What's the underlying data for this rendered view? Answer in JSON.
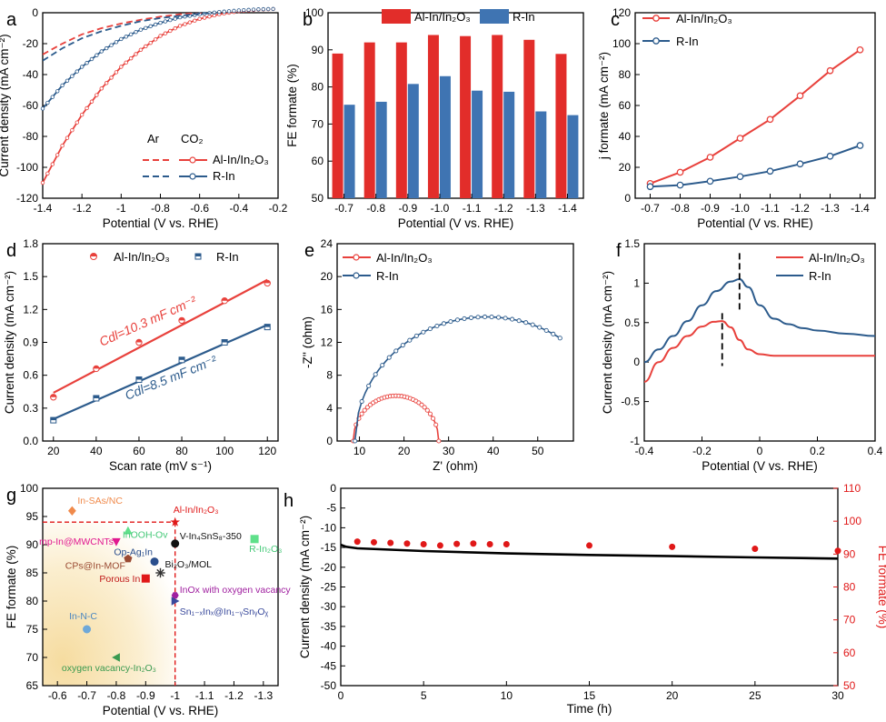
{
  "colors": {
    "red": "#e8413c",
    "blue": "#2c5b8c",
    "bar_red": "#e22d2a",
    "bar_blue": "#3f74b2",
    "green": "#2eb24b",
    "black": "#111111"
  },
  "chart_data": [
    {
      "id": "a",
      "letter": "a",
      "type": "line",
      "xlabel": "Potential (V vs. RHE)",
      "ylabel": "Current density (mA cm⁻²)",
      "xlim": [
        -1.4,
        -0.2
      ],
      "ylim": [
        -120,
        0
      ],
      "xticks": [
        -1.4,
        -1.2,
        -1.0,
        -0.8,
        -0.6,
        -0.4,
        -0.2
      ],
      "yticks": [
        -120,
        -100,
        -80,
        -60,
        -40,
        -20,
        0
      ],
      "legend_headers": [
        "Ar",
        "CO₂"
      ],
      "series": [
        {
          "name": "Al-In/In₂O₃",
          "condition": "CO₂",
          "color": "#e8413c",
          "style": "solid-marker",
          "x": [
            -1.4,
            -1.3,
            -1.2,
            -1.1,
            -1.0,
            -0.9,
            -0.8,
            -0.7,
            -0.6,
            -0.5,
            -0.4,
            -0.3,
            -0.2
          ],
          "y": [
            -110,
            -86,
            -66,
            -49,
            -35,
            -24,
            -15,
            -8.5,
            -4,
            -1,
            1,
            2,
            2.5
          ]
        },
        {
          "name": "R-In",
          "condition": "CO₂",
          "color": "#2c5b8c",
          "style": "solid-marker",
          "x": [
            -1.4,
            -1.3,
            -1.2,
            -1.1,
            -1.0,
            -0.9,
            -0.8,
            -0.7,
            -0.6,
            -0.5,
            -0.4,
            -0.3,
            -0.2
          ],
          "y": [
            -62,
            -47,
            -35,
            -25,
            -17,
            -11,
            -6.5,
            -3,
            -1,
            0.5,
            1.5,
            2.2,
            2.5
          ]
        },
        {
          "name": "Al-In/In₂O₃",
          "condition": "Ar",
          "color": "#e8413c",
          "style": "dashed",
          "x": [
            -1.4,
            -1.3,
            -1.2,
            -1.1,
            -1.0,
            -0.9,
            -0.8,
            -0.7,
            -0.6,
            -0.5,
            -0.4,
            -0.3,
            -0.2
          ],
          "y": [
            -27,
            -20,
            -14,
            -10,
            -7,
            -4.5,
            -2.5,
            -1,
            0,
            1,
            1.8,
            2.5,
            3
          ]
        },
        {
          "name": "R-In",
          "condition": "Ar",
          "color": "#2c5b8c",
          "style": "dashed",
          "x": [
            -1.4,
            -1.3,
            -1.2,
            -1.1,
            -1.0,
            -0.9,
            -0.8,
            -0.7,
            -0.6,
            -0.5,
            -0.4,
            -0.3,
            -0.2
          ],
          "y": [
            -31,
            -23,
            -16.5,
            -12,
            -8.5,
            -5.5,
            -3.5,
            -2,
            -0.5,
            0.5,
            1.5,
            2.3,
            3
          ]
        }
      ]
    },
    {
      "id": "b",
      "letter": "b",
      "type": "bar",
      "xlabel": "Potential  (V vs. RHE)",
      "ylabel": "FE formate (%)",
      "ylim": [
        50,
        100
      ],
      "yticks": [
        50,
        60,
        70,
        80,
        90,
        100
      ],
      "categories": [
        "-0.7",
        "-0.8",
        "-0.9",
        "-1.0",
        "-1.1",
        "-1.2",
        "-1.3",
        "-1.4"
      ],
      "series": [
        {
          "name": "Al-In/In₂O₃",
          "color": "#e22d2a",
          "values": [
            89,
            92,
            92,
            94,
            93.7,
            94,
            92.7,
            88.9
          ]
        },
        {
          "name": "R-In",
          "color": "#3f74b2",
          "values": [
            75.2,
            76,
            80.8,
            82.9,
            79,
            78.7,
            73.4,
            72.4
          ]
        }
      ]
    },
    {
      "id": "c",
      "letter": "c",
      "type": "line",
      "xlabel": "Potential (V vs. RHE)",
      "ylabel": "j formate (mA cm⁻²)",
      "xlim": [
        -0.65,
        -1.45
      ],
      "ylim": [
        0,
        120
      ],
      "xticks": [
        -0.7,
        -0.8,
        -0.9,
        -1.0,
        -1.1,
        -1.2,
        -1.3,
        -1.4
      ],
      "xticklabels": [
        "-0.7",
        "-0.8",
        "-0.9",
        "-1.0",
        "-1.1",
        "-1.2",
        "-1.3",
        "-1.4"
      ],
      "yticks": [
        0,
        20,
        40,
        60,
        80,
        100,
        120
      ],
      "series": [
        {
          "name": "Al-In/In₂O₃",
          "color": "#e8413c",
          "x": [
            -0.7,
            -0.8,
            -0.9,
            -1.0,
            -1.1,
            -1.2,
            -1.3,
            -1.4
          ],
          "y": [
            9.5,
            16.8,
            26.5,
            38.8,
            51,
            66.3,
            82.5,
            96
          ]
        },
        {
          "name": "R-In",
          "color": "#2c5b8c",
          "x": [
            -0.7,
            -0.8,
            -0.9,
            -1.0,
            -1.1,
            -1.2,
            -1.3,
            -1.4
          ],
          "y": [
            7.5,
            8.5,
            11,
            14,
            17.5,
            22.2,
            27.2,
            34.1
          ]
        }
      ]
    },
    {
      "id": "d",
      "letter": "d",
      "type": "scatter",
      "xlabel": "Scan rate (mV s⁻¹)",
      "ylabel": "Current density (mA cm⁻²)",
      "xlim": [
        15,
        125
      ],
      "ylim": [
        0.0,
        1.8
      ],
      "xticks": [
        20,
        40,
        60,
        80,
        100,
        120
      ],
      "yticks": [
        0.0,
        0.3,
        0.6,
        0.9,
        1.2,
        1.5,
        1.8
      ],
      "yticklabels": [
        "0.0",
        "0.3",
        "0.6",
        "0.9",
        "1.2",
        "1.5",
        "1.8"
      ],
      "series": [
        {
          "name": "Al-In/In₂O₃",
          "color": "#e8413c",
          "x": [
            20,
            40,
            60,
            80,
            100,
            120
          ],
          "y": [
            0.4,
            0.66,
            0.9,
            1.1,
            1.28,
            1.44
          ],
          "fit": [
            [
              20,
              0.44
            ],
            [
              120,
              1.47
            ]
          ]
        },
        {
          "name": "R-In",
          "color": "#2c5b8c",
          "x": [
            20,
            40,
            60,
            80,
            100,
            120
          ],
          "y": [
            0.19,
            0.39,
            0.56,
            0.74,
            0.9,
            1.04
          ],
          "fit": [
            [
              20,
              0.2
            ],
            [
              120,
              1.06
            ]
          ]
        }
      ],
      "annotations": [
        "Cdl=10.3 mF cm⁻²",
        "Cdl=8.5 mF cm⁻²"
      ]
    },
    {
      "id": "e",
      "letter": "e",
      "type": "scatter",
      "xlabel": "Z' (ohm)",
      "ylabel": "-Z'' (ohm)",
      "xlim": [
        5,
        58
      ],
      "ylim": [
        0,
        24
      ],
      "xticks": [
        10,
        20,
        30,
        40,
        50
      ],
      "yticks": [
        0,
        4,
        8,
        12,
        16,
        20,
        24
      ],
      "series": [
        {
          "name": "Al-In/In₂O₃",
          "color": "#e8413c",
          "center": 18.2,
          "radius": 9.6,
          "height": 5.5
        },
        {
          "name": "R-In",
          "color": "#2c5b8c",
          "center": 38.5,
          "radius": 29.5,
          "height": 15.1,
          "end_x": 55
        }
      ]
    },
    {
      "id": "f",
      "letter": "f",
      "type": "line",
      "xlabel": "Potential (V vs. RHE)",
      "ylabel": "Current density (mA cm⁻²)",
      "xlim": [
        -0.4,
        0.4
      ],
      "ylim": [
        -1.0,
        1.5
      ],
      "xticks": [
        -0.4,
        -0.2,
        0.0,
        0.2,
        0.4
      ],
      "yticks": [
        -1.0,
        -0.5,
        0.0,
        0.5,
        1.0,
        1.5
      ],
      "series": [
        {
          "name": "Al-In/In₂O₃",
          "color": "#e8413c",
          "x": [
            -0.4,
            -0.35,
            -0.3,
            -0.25,
            -0.2,
            -0.16,
            -0.13,
            -0.1,
            -0.07,
            -0.04,
            0.0,
            0.05,
            0.1,
            0.2,
            0.3,
            0.4
          ],
          "y": [
            -0.25,
            0.0,
            0.18,
            0.33,
            0.45,
            0.51,
            0.52,
            0.44,
            0.28,
            0.16,
            0.1,
            0.08,
            0.08,
            0.08,
            0.08,
            0.08
          ]
        },
        {
          "name": "R-In",
          "color": "#2c5b8c",
          "x": [
            -0.4,
            -0.35,
            -0.3,
            -0.25,
            -0.2,
            -0.15,
            -0.1,
            -0.07,
            -0.04,
            0.0,
            0.05,
            0.1,
            0.15,
            0.2,
            0.3,
            0.4
          ],
          "y": [
            0.0,
            0.16,
            0.33,
            0.52,
            0.72,
            0.9,
            1.02,
            1.05,
            0.95,
            0.72,
            0.55,
            0.48,
            0.43,
            0.4,
            0.36,
            0.33
          ]
        }
      ],
      "peak_markers": [
        -0.13,
        -0.07
      ]
    },
    {
      "id": "g",
      "letter": "g",
      "type": "scatter",
      "xlabel": "Potential (V vs. RHE)",
      "ylabel": "FE formate (%)",
      "xlim": [
        -0.55,
        -1.35
      ],
      "ylim": [
        65,
        100
      ],
      "xticks": [
        -0.6,
        -0.7,
        -0.8,
        -0.9,
        -1.0,
        -1.1,
        -1.2,
        -1.3
      ],
      "yticks": [
        65,
        70,
        75,
        80,
        85,
        90,
        95,
        100
      ],
      "reference": {
        "x": -1.0,
        "y": 94
      },
      "points": [
        {
          "label": "In-SAs/NC",
          "x": -0.65,
          "y": 96,
          "color": "#f08a4b",
          "marker": "diamond",
          "label_color": "#f08a4b"
        },
        {
          "label": "Al-In/In₂O₃",
          "x": -1.0,
          "y": 94,
          "color": "#e01818",
          "marker": "star",
          "label_color": "#e01818"
        },
        {
          "label": "InOOH-Ov",
          "x": -0.84,
          "y": 92.5,
          "color": "#5fe08a",
          "marker": "triangle",
          "label_color": "#45c978"
        },
        {
          "label": "V-In₄SnS₈-350",
          "x": -1.0,
          "y": 90.2,
          "color": "#111111",
          "marker": "circle",
          "label_color": "#111111"
        },
        {
          "label": "R-In₂O₃",
          "x": -1.27,
          "y": 91,
          "color": "#5fe08a",
          "marker": "square",
          "label_color": "#45c978"
        },
        {
          "label": "mp-In@MWCNTs",
          "x": -0.8,
          "y": 90.5,
          "color": "#e01890",
          "marker": "down-triangle",
          "label_color": "#e01890"
        },
        {
          "label": "Op-Ag₁In",
          "x": -0.93,
          "y": 87,
          "color": "#2a4e8c",
          "marker": "circle",
          "label_color": "#2a4e8c"
        },
        {
          "label": "CPs@In-MOF",
          "x": -0.84,
          "y": 87.5,
          "color": "#9a4a32",
          "marker": "pentagon",
          "label_color": "#9a4a32"
        },
        {
          "label": "Bi₂O₃/MOL",
          "x": -0.95,
          "y": 85,
          "color": "#333333",
          "marker": "asterisk",
          "label_color": "#111111"
        },
        {
          "label": "Porous In",
          "x": -0.9,
          "y": 84,
          "color": "#e01818",
          "marker": "square",
          "label_color": "#c01818"
        },
        {
          "label": "InOx with oxygen vacancy",
          "x": -1.0,
          "y": 81,
          "color": "#a020a0",
          "marker": "hexagon",
          "label_color": "#a020a0"
        },
        {
          "label": "Sn₁₋ₓInₓ@In₁₋ᵧSnᵧOᵪ",
          "x": -1.0,
          "y": 80,
          "color": "#3a4a9c",
          "marker": "right-triangle",
          "label_color": "#3a4a9c"
        },
        {
          "label": "In-N-C",
          "x": -0.7,
          "y": 75,
          "color": "#6fa8d8",
          "marker": "circle",
          "label_color": "#4a86c0"
        },
        {
          "label": "oxygen vacancy-In₂O₃",
          "x": -0.8,
          "y": 70,
          "color": "#3a9a50",
          "marker": "left-triangle",
          "label_color": "#3a9a50"
        }
      ]
    },
    {
      "id": "h",
      "letter": "h",
      "type": "scatter",
      "xlabel": "Time (h)",
      "ylabel": "Current density (mA cm⁻²)",
      "y2label": "FE formate (%)",
      "xlim": [
        0,
        30
      ],
      "ylim": [
        -50,
        0
      ],
      "y2lim": [
        50,
        110
      ],
      "xticks": [
        0,
        5,
        10,
        15,
        20,
        25,
        30
      ],
      "yticks": [
        -50,
        -45,
        -40,
        -35,
        -30,
        -25,
        -20,
        -15,
        -10,
        -5,
        0
      ],
      "y2ticks": [
        50,
        60,
        70,
        80,
        90,
        100,
        110
      ],
      "series": [
        {
          "name": "Current density",
          "axis": "left",
          "color": "#000000",
          "x": [
            0,
            0.3,
            1,
            5,
            10,
            15,
            20,
            25,
            30
          ],
          "y": [
            -14.3,
            -14.8,
            -15.2,
            -15.9,
            -16.5,
            -16.9,
            -17.2,
            -17.5,
            -17.8
          ]
        },
        {
          "name": "FE formate",
          "axis": "right",
          "color": "#e01818",
          "x": [
            1,
            2,
            3,
            4,
            5,
            6,
            7,
            8,
            9,
            10,
            15,
            20,
            25,
            30
          ],
          "y": [
            93.8,
            93.6,
            93.4,
            93.2,
            93.0,
            92.6,
            93.1,
            93.2,
            93.0,
            93.0,
            92.6,
            92.2,
            91.6,
            91.0
          ]
        }
      ]
    }
  ]
}
